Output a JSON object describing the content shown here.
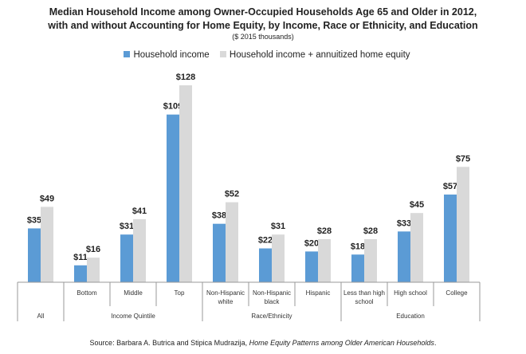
{
  "chart_data": {
    "type": "bar",
    "title_line1": "Median Household Income among Owner-Occupied Households Age 65 and Older in 2012,",
    "title_line2": "with and without Accounting for Home Equity, by Income, Race or Ethnicity, and Education",
    "subtitle": "($ 2015 thousands)",
    "categories": [
      "",
      "Bottom",
      "Middle",
      "Top",
      "Non-Hispanic white",
      "Non-Hispanic black",
      "Hispanic",
      "Less than high school",
      "High school",
      "College"
    ],
    "groups": [
      {
        "label": "All",
        "span": 1
      },
      {
        "label": "Income Quintile",
        "span": 3
      },
      {
        "label": "Race/Ethnicity",
        "span": 3
      },
      {
        "label": "Education",
        "span": 3
      }
    ],
    "series": [
      {
        "name": "Household income",
        "color": "#5b9bd5",
        "values": [
          35,
          11,
          31,
          109,
          38,
          22,
          20,
          18,
          33,
          57
        ]
      },
      {
        "name": "Household income + annuitized home equity",
        "color": "#d9d9d9",
        "values": [
          49,
          16,
          41,
          128,
          52,
          31,
          28,
          28,
          45,
          75
        ]
      }
    ],
    "ylim": [
      0,
      128
    ],
    "grid": false,
    "legend_position": "top",
    "source_prefix": "Source: Barbara A. Butrica and Stipica Mudrazija, ",
    "source_title": "Home Equity Patterns among Older American Households",
    "source_suffix": "."
  }
}
